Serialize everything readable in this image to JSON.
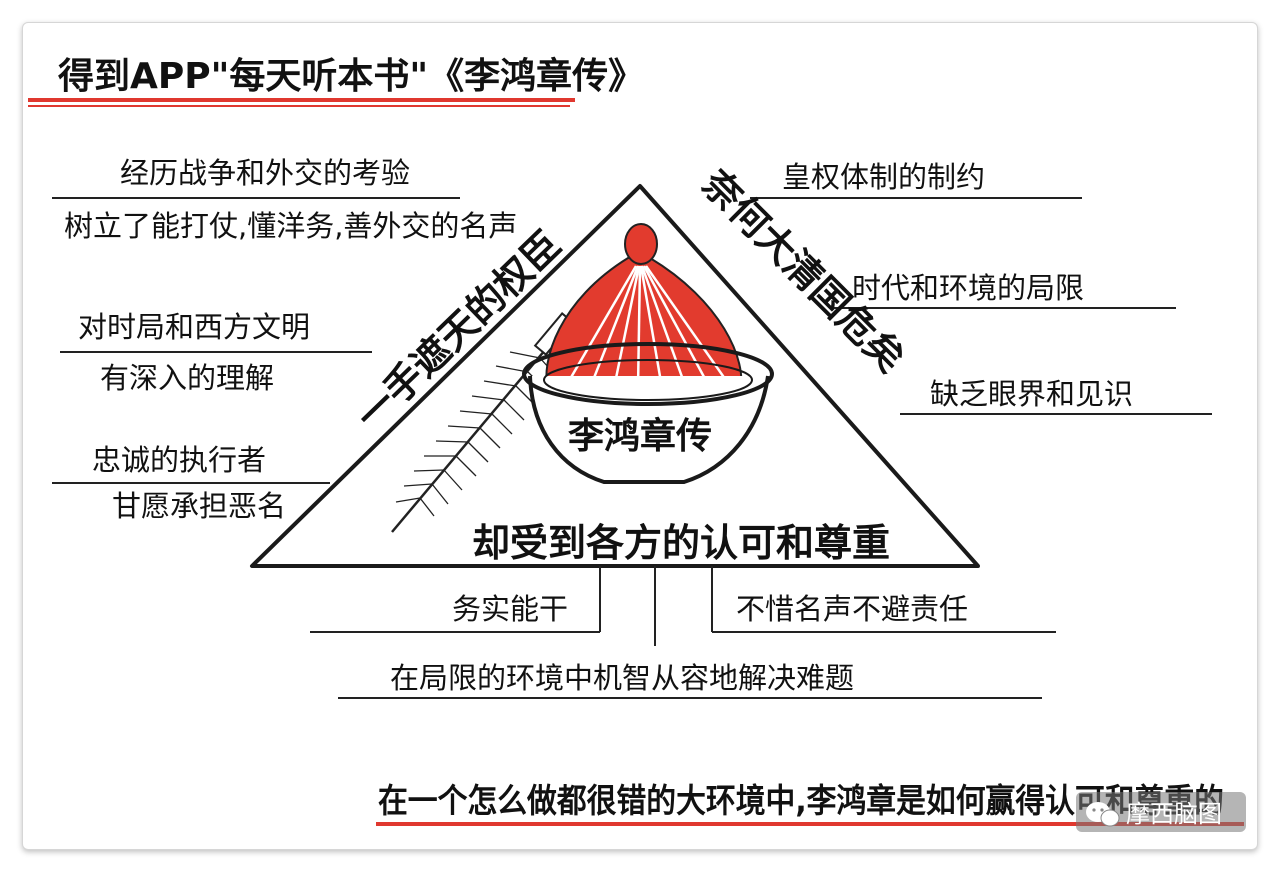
{
  "title": "得到APP\"每天听本书\"《李鸿章传》",
  "left_items": [
    {
      "line1": "经历战争和外交的考验",
      "line2": "树立了能打仗,懂洋务,善外交的名声"
    },
    {
      "line1": "对时局和西方文明",
      "line2": "有深入的理解"
    },
    {
      "line1": "忠诚的执行者",
      "line2": "甘愿承担恶名"
    }
  ],
  "right_items": [
    "皇权体制的制约",
    "时代和环境的局限",
    "缺乏眼界和见识"
  ],
  "triangle": {
    "left_side": "一手遮天的权臣",
    "right_side": "奈何大清国危矣",
    "base": "却受到各方的认可和尊重",
    "center": "李鸿章传"
  },
  "bottom_items": {
    "left": "务实能干",
    "right": "不惜名声不避责任",
    "center": "在局限的环境中机智从容地解决难题"
  },
  "summary": "在一个怎么做都很错的大环境中,李鸿章是如何赢得认可和尊重的",
  "watermark": "摩西脑图",
  "colors": {
    "accent_red": "#e0382f",
    "ink": "#111111",
    "hat_red": "#e23b2e"
  }
}
